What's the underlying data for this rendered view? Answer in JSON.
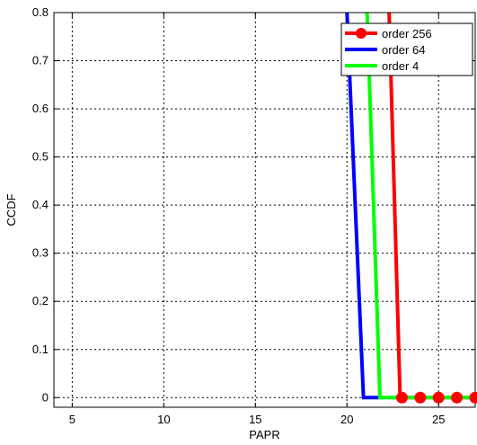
{
  "chart_data": {
    "type": "line",
    "title": "",
    "xlabel": "PAPR",
    "ylabel": "CCDF",
    "xlim": [
      4,
      27
    ],
    "ylim": [
      -0.02,
      0.8
    ],
    "xticks": [
      5,
      10,
      15,
      20,
      25
    ],
    "yticks": [
      0,
      0.1,
      0.2,
      0.3,
      0.4,
      0.5,
      0.6,
      0.7,
      0.8
    ],
    "xtick_labels": [
      "5",
      "10",
      "15",
      "20",
      "25"
    ],
    "ytick_labels": [
      "0",
      "0.1",
      "0.2",
      "0.3",
      "0.4",
      "0.5",
      "0.6",
      "0.7",
      "0.8"
    ],
    "grid": true,
    "legend_position": "top-right",
    "series": [
      {
        "name": "order 256",
        "color": "#ff0000",
        "marker": "circle",
        "x": [
          22.3,
          22.9,
          23.0,
          24.0,
          25.0,
          26.0,
          27.0
        ],
        "y": [
          0.8,
          0.0,
          0.0,
          0.0,
          0.0,
          0.0,
          0.0
        ],
        "marker_x": [
          23.0,
          24.0,
          25.0,
          26.0,
          27.0
        ],
        "marker_y": [
          0.0,
          0.0,
          0.0,
          0.0,
          0.0
        ]
      },
      {
        "name": "order 64",
        "color": "#0000ff",
        "marker": "none",
        "x": [
          20.0,
          20.9,
          21.8
        ],
        "y": [
          0.8,
          0.0,
          0.0
        ],
        "marker_x": [],
        "marker_y": []
      },
      {
        "name": "order 4",
        "color": "#00ff00",
        "marker": "none",
        "x": [
          21.1,
          21.8,
          27.0
        ],
        "y": [
          0.8,
          0.0,
          0.0
        ],
        "marker_x": [],
        "marker_y": []
      }
    ]
  }
}
